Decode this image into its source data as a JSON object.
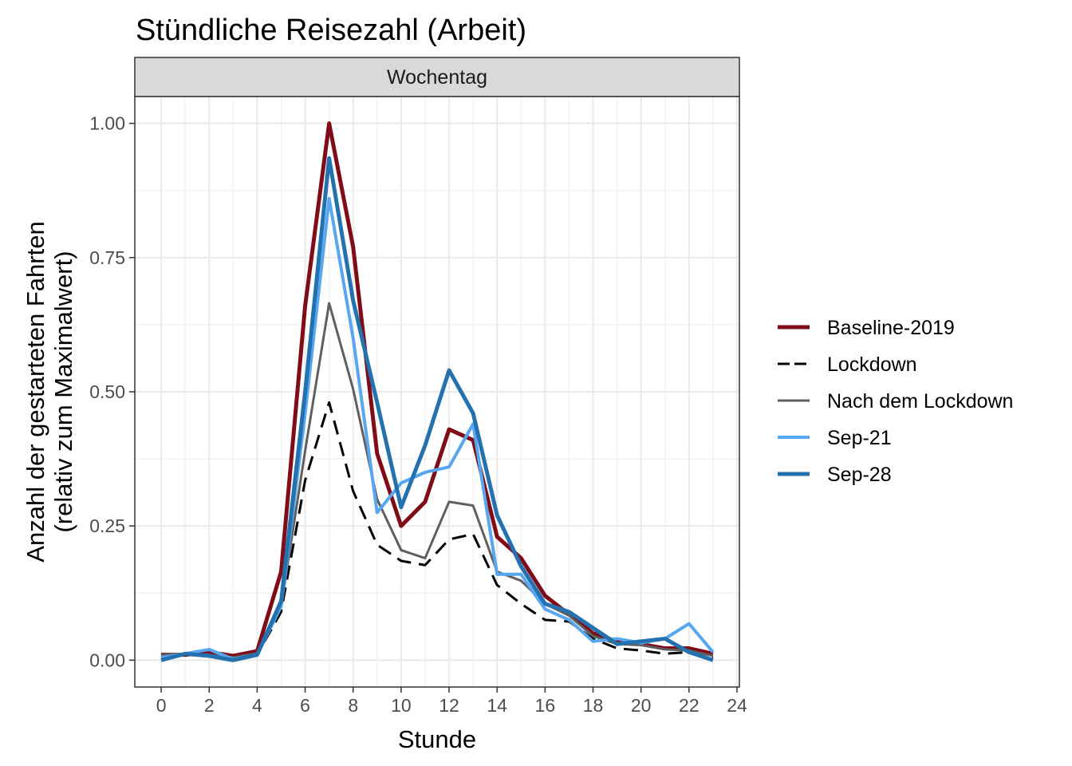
{
  "chart_data": {
    "type": "line",
    "title": "Stündliche Reisezahl (Arbeit)",
    "facet": "Wochentag",
    "xlabel": "Stunde",
    "ylabel_lines": [
      "Anzahl der gestarteten Fahrten",
      "(relativ zum Maximalwert)"
    ],
    "xlim": [
      -1.1,
      24.1
    ],
    "ylim": [
      -0.05,
      1.05
    ],
    "x_ticks": [
      0,
      2,
      4,
      6,
      8,
      10,
      12,
      14,
      16,
      18,
      20,
      22,
      24
    ],
    "y_ticks": [
      0.0,
      0.25,
      0.5,
      0.75,
      1.0
    ],
    "y_tick_labels": [
      "0.00",
      "0.25",
      "0.50",
      "0.75",
      "1.00"
    ],
    "grid": true,
    "legend_position": "right",
    "x": [
      0,
      1,
      2,
      3,
      4,
      5,
      6,
      7,
      8,
      9,
      10,
      11,
      12,
      13,
      14,
      15,
      16,
      17,
      18,
      19,
      20,
      21,
      22,
      23
    ],
    "series": [
      {
        "name": "Baseline-2019",
        "color": "#7f0c17",
        "width": 5,
        "dash": "",
        "values": [
          0.01,
          0.01,
          0.015,
          0.008,
          0.017,
          0.165,
          0.66,
          1.0,
          0.77,
          0.385,
          0.25,
          0.295,
          0.43,
          0.41,
          0.23,
          0.19,
          0.12,
          0.085,
          0.05,
          0.035,
          0.03,
          0.022,
          0.022,
          0.012
        ]
      },
      {
        "name": "Lockdown",
        "color": "#000000",
        "width": 3,
        "dash": "18,10",
        "values": [
          0.005,
          0.01,
          0.008,
          0.002,
          0.01,
          0.09,
          0.335,
          0.48,
          0.315,
          0.215,
          0.185,
          0.177,
          0.225,
          0.235,
          0.14,
          0.105,
          0.075,
          0.072,
          0.04,
          0.022,
          0.018,
          0.012,
          0.015,
          0.005
        ]
      },
      {
        "name": "Nach dem Lockdown",
        "color": "#5f5f5f",
        "width": 3,
        "dash": "",
        "values": [
          0.01,
          0.012,
          0.01,
          0.005,
          0.013,
          0.1,
          0.39,
          0.665,
          0.505,
          0.3,
          0.205,
          0.19,
          0.295,
          0.288,
          0.165,
          0.148,
          0.105,
          0.083,
          0.045,
          0.03,
          0.028,
          0.02,
          0.018,
          0.008
        ]
      },
      {
        "name": "Sep-21",
        "color": "#56a6f0",
        "width": 4,
        "dash": "",
        "values": [
          0.005,
          0.012,
          0.02,
          0.002,
          0.01,
          0.1,
          0.46,
          0.86,
          0.6,
          0.275,
          0.33,
          0.35,
          0.36,
          0.44,
          0.16,
          0.16,
          0.095,
          0.075,
          0.035,
          0.04,
          0.032,
          0.04,
          0.068,
          0.015
        ]
      },
      {
        "name": "Sep-28",
        "color": "#2471b0",
        "width": 5,
        "dash": "",
        "values": [
          0.0,
          0.012,
          0.008,
          0.0,
          0.01,
          0.11,
          0.5,
          0.935,
          0.67,
          0.48,
          0.285,
          0.4,
          0.54,
          0.46,
          0.27,
          0.175,
          0.105,
          0.09,
          0.06,
          0.03,
          0.035,
          0.04,
          0.015,
          0.0
        ]
      }
    ]
  }
}
